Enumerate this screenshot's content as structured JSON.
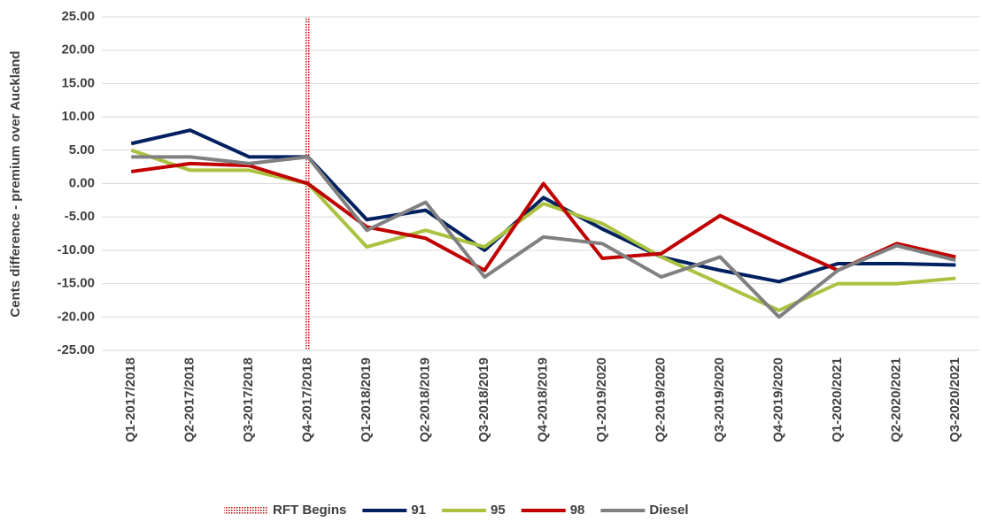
{
  "chart_data": {
    "type": "line",
    "y_label": "Cents difference - premium over Auckland",
    "categories": [
      "Q1-2017/2018",
      "Q2-2017/2018",
      "Q3-2017/2018",
      "Q4-2017/2018",
      "Q1-2018/2019",
      "Q2-2018/2019",
      "Q3-2018/2019",
      "Q4-2018/2019",
      "Q1-2019/2020",
      "Q2-2019/2020",
      "Q3-2019/2020",
      "Q4-2019/2020",
      "Q1-2020/2021",
      "Q2-2020/2021",
      "Q3-2020/2021"
    ],
    "series": [
      {
        "name": "91",
        "color": "#002060",
        "values": [
          6,
          8,
          4,
          4,
          -5.4,
          -4,
          -10,
          -2.1,
          -6.8,
          -11,
          -13,
          -14.7,
          -12,
          -12,
          -12.2
        ]
      },
      {
        "name": "95",
        "color": "#a9c23f",
        "values": [
          5,
          2,
          2,
          0,
          -9.5,
          -7,
          -9.5,
          -3,
          -6,
          -11,
          -15,
          -19,
          -15,
          -15,
          -14.2
        ]
      },
      {
        "name": "98",
        "color": "#c00000",
        "values": [
          1.8,
          3,
          2.7,
          0,
          -6.5,
          -8.2,
          -13,
          0,
          -11.2,
          -10.5,
          -4.8,
          -9,
          -13,
          -9,
          -11
        ]
      },
      {
        "name": "Diesel",
        "color": "#808080",
        "values": [
          4,
          4,
          3,
          4,
          -7,
          -2.8,
          -14,
          -8,
          -9,
          -14,
          -11,
          -20,
          -13,
          -9.3,
          -11.5
        ]
      }
    ],
    "marker": {
      "name": "RFT Begins",
      "x": "Q4-2017/2018",
      "color": "#c00000"
    },
    "ylim": [
      -25,
      25
    ],
    "yticks": [
      {
        "value": -25,
        "label": "-25.00"
      },
      {
        "value": -20,
        "label": "-20.00"
      },
      {
        "value": -15,
        "label": "-15.00"
      },
      {
        "value": -10,
        "label": "-10.00"
      },
      {
        "value": -5,
        "label": "-5.00"
      },
      {
        "value": 0,
        "label": "0.00"
      },
      {
        "value": 5,
        "label": "5.00"
      },
      {
        "value": 10,
        "label": "10.00"
      },
      {
        "value": 15,
        "label": "15.00"
      },
      {
        "value": 20,
        "label": "20.00"
      },
      {
        "value": 25,
        "label": "25.00"
      }
    ],
    "grid": true
  }
}
